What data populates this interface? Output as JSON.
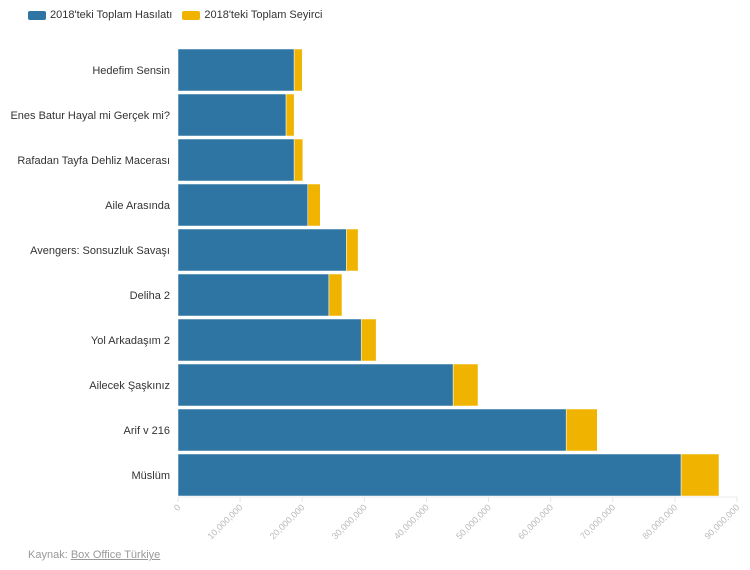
{
  "chart_data": {
    "type": "bar",
    "orientation": "horizontal",
    "stacked": true,
    "categories": [
      "Hedefim Sensin",
      "Enes Batur Hayal mi Gerçek mi?",
      "Rafadan Tayfa Dehliz Macerası",
      "Aile Arasında",
      "Avengers: Sonsuzluk Savaşı",
      "Deliha 2",
      "Yol Arkadaşım 2",
      "Ailecek Şaşkınız",
      "Arif v 216",
      "Müslüm"
    ],
    "series": [
      {
        "name": "2018'teki Toplam Hasılatı",
        "color": "#2e75a3",
        "values": [
          18700000,
          17400000,
          18700000,
          20900000,
          27100000,
          24300000,
          29500000,
          44300000,
          62500000,
          81000000
        ]
      },
      {
        "name": "2018'teki Toplam Seyirci",
        "color": "#f0b400",
        "values": [
          1300000,
          1300000,
          1400000,
          2000000,
          1900000,
          2100000,
          2400000,
          4000000,
          5000000,
          6100000
        ]
      }
    ],
    "xlim": [
      0,
      90000000
    ],
    "xticks": [
      0,
      10000000,
      20000000,
      30000000,
      40000000,
      50000000,
      60000000,
      70000000,
      80000000,
      90000000
    ],
    "xtick_labels": [
      "0",
      "10,000,000",
      "20,000,000",
      "30,000,000",
      "40,000,000",
      "50,000,000",
      "60,000,000",
      "70,000,000",
      "80,000,000",
      "90,000,000"
    ],
    "legend": "top-left",
    "grid": false
  },
  "source": {
    "label": "Kaynak:",
    "link": "Box Office Türkiye"
  }
}
